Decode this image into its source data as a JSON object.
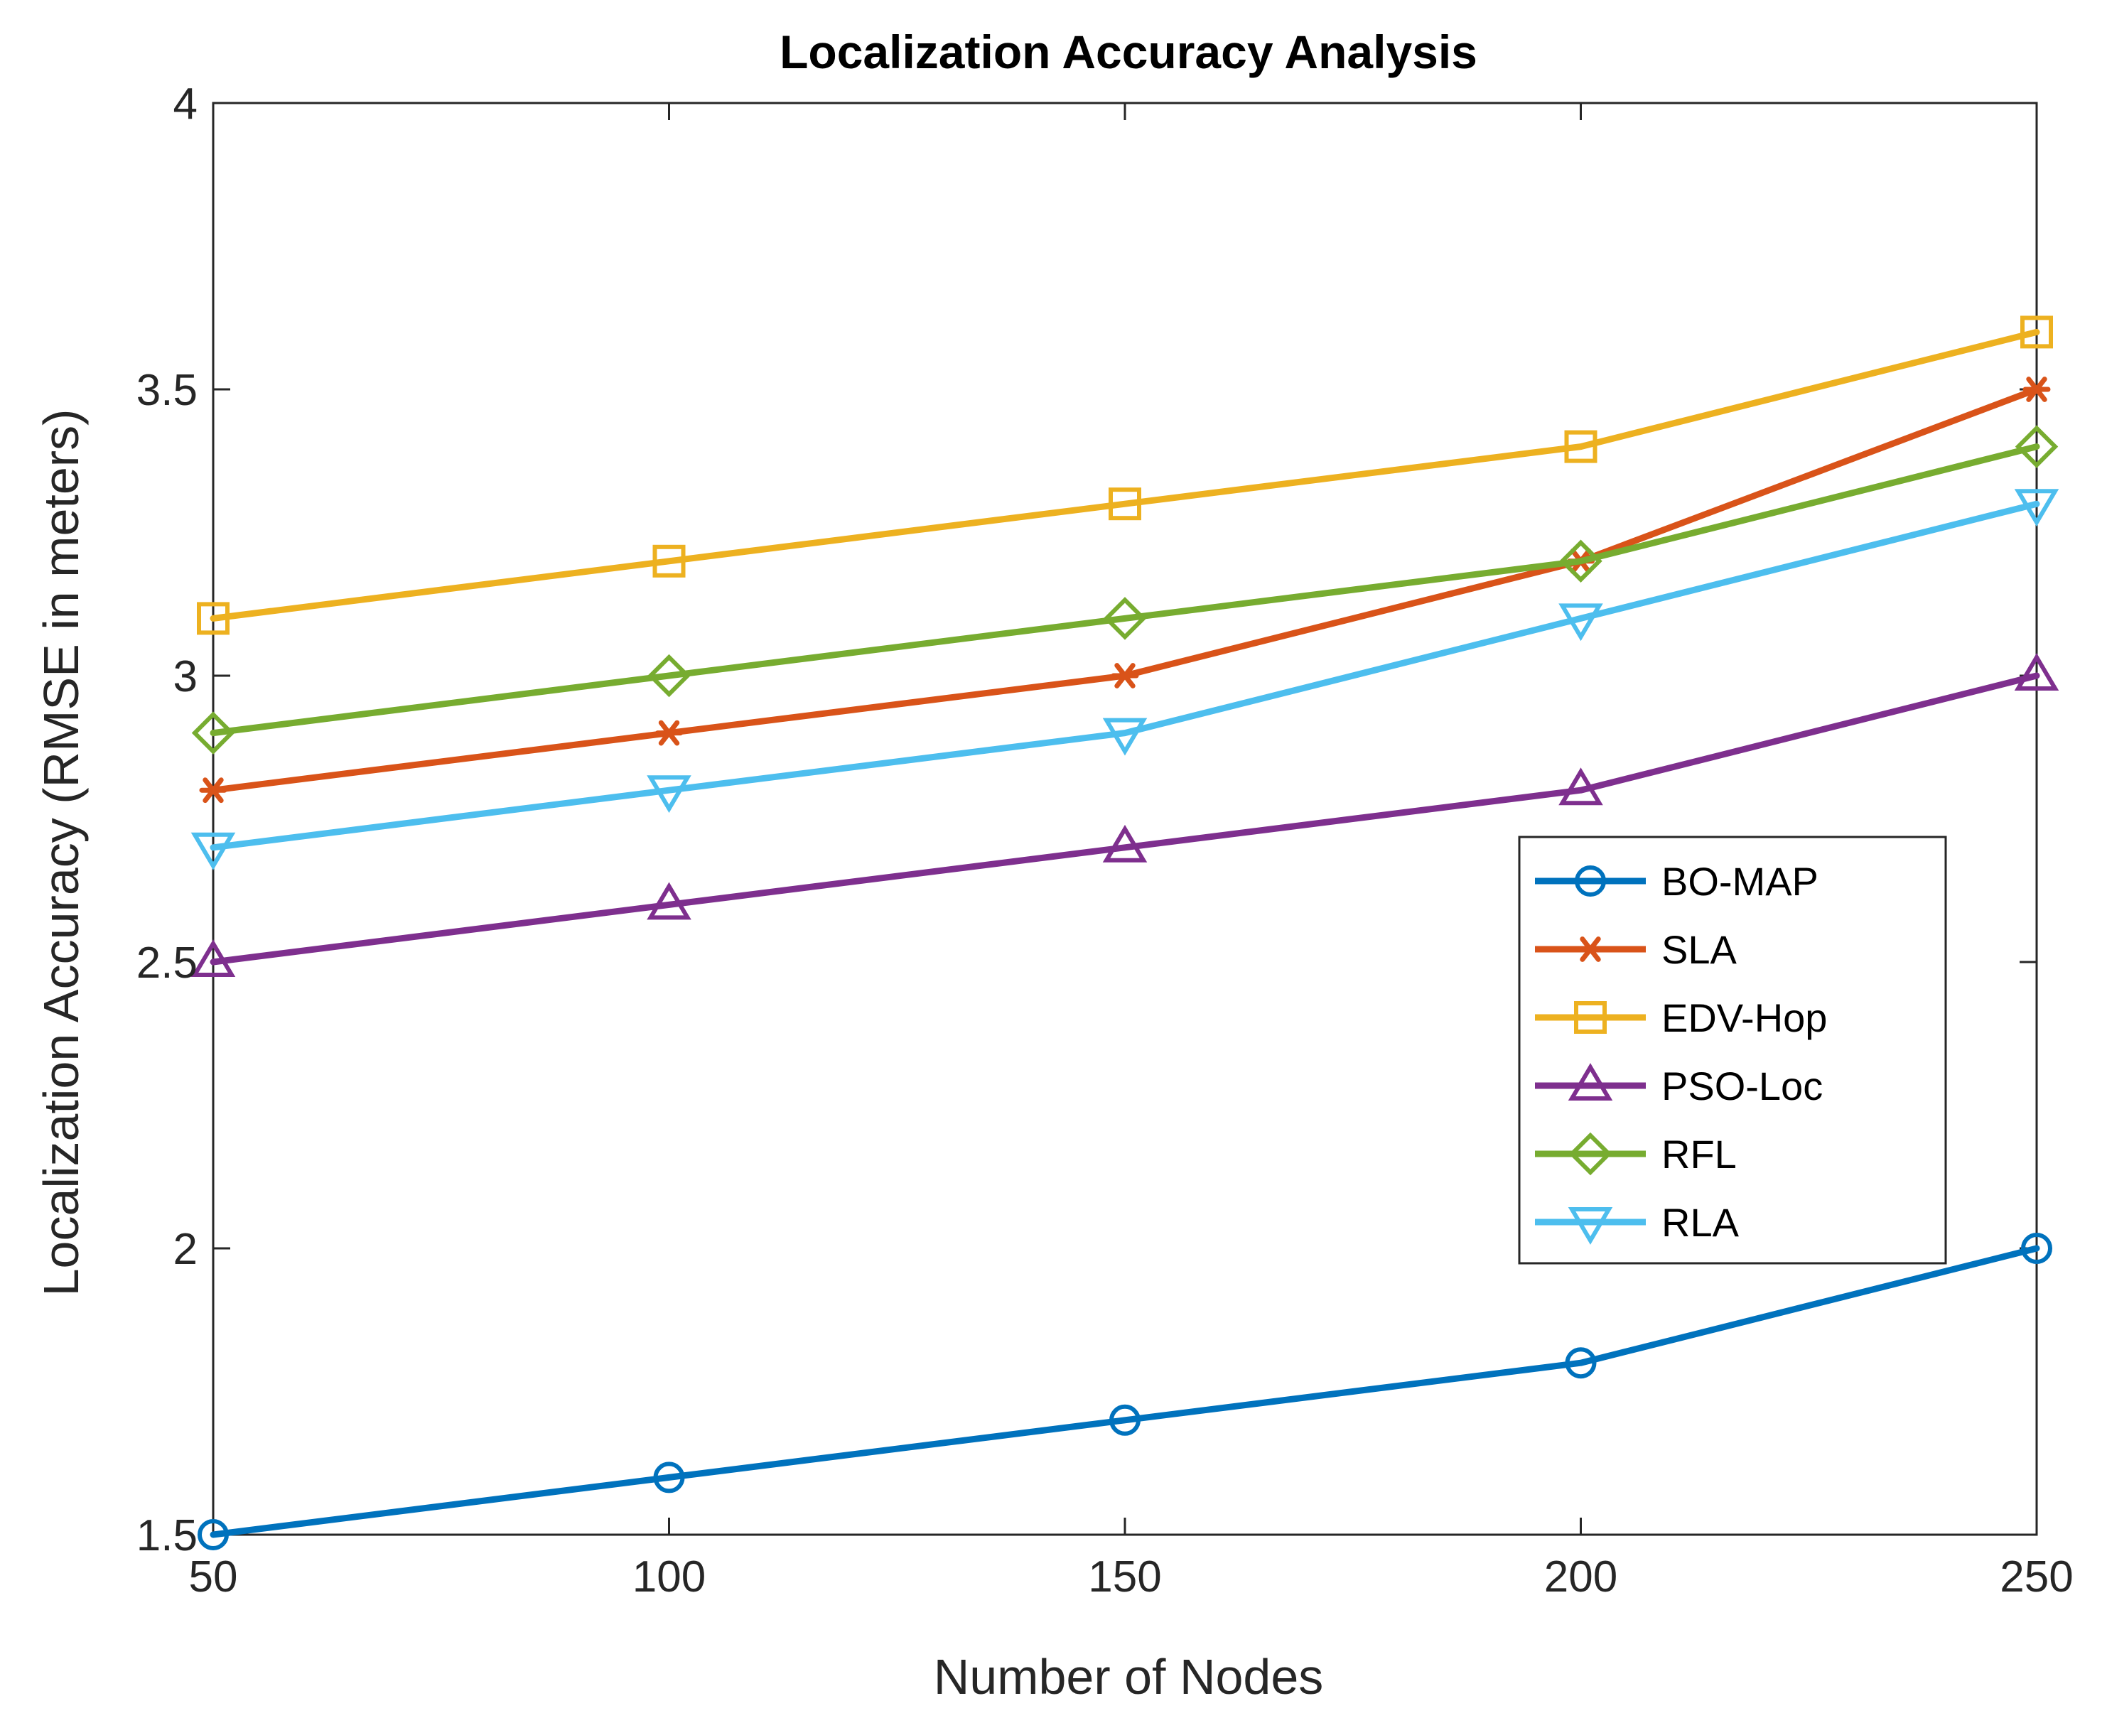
{
  "chart_data": {
    "type": "line",
    "title": "Localization Accuracy Analysis",
    "xlabel": "Number of Nodes",
    "ylabel": "Localization Accuracy (RMSE in meters)",
    "x": [
      50,
      100,
      150,
      200,
      250
    ],
    "xlim": [
      50,
      250
    ],
    "ylim": [
      1.5,
      4
    ],
    "xticks": [
      "50",
      "100",
      "150",
      "200",
      "250"
    ],
    "yticks": [
      "1.5",
      "2",
      "2.5",
      "3",
      "3.5",
      "4"
    ],
    "ytick_values": [
      1.5,
      2,
      2.5,
      3,
      3.5,
      4
    ],
    "grid": false,
    "legend_location": "right",
    "series": [
      {
        "name": "BO-MAP",
        "values": [
          1.5,
          1.6,
          1.7,
          1.8,
          2.0
        ],
        "color": "#0072BD",
        "marker": "circle"
      },
      {
        "name": "SLA",
        "values": [
          2.8,
          2.9,
          3.0,
          3.2,
          3.5
        ],
        "color": "#D95319",
        "marker": "asterisk"
      },
      {
        "name": "EDV-Hop",
        "values": [
          3.1,
          3.2,
          3.3,
          3.4,
          3.6
        ],
        "color": "#EDB120",
        "marker": "square"
      },
      {
        "name": "PSO-Loc",
        "values": [
          2.5,
          2.6,
          2.7,
          2.8,
          3.0
        ],
        "color": "#7E2F8E",
        "marker": "triangle-up"
      },
      {
        "name": "RFL",
        "values": [
          2.9,
          3.0,
          3.1,
          3.2,
          3.4
        ],
        "color": "#77AC30",
        "marker": "diamond"
      },
      {
        "name": "RLA",
        "values": [
          2.7,
          2.8,
          2.9,
          3.1,
          3.3
        ],
        "color": "#4DBEEE",
        "marker": "triangle-down"
      }
    ]
  }
}
